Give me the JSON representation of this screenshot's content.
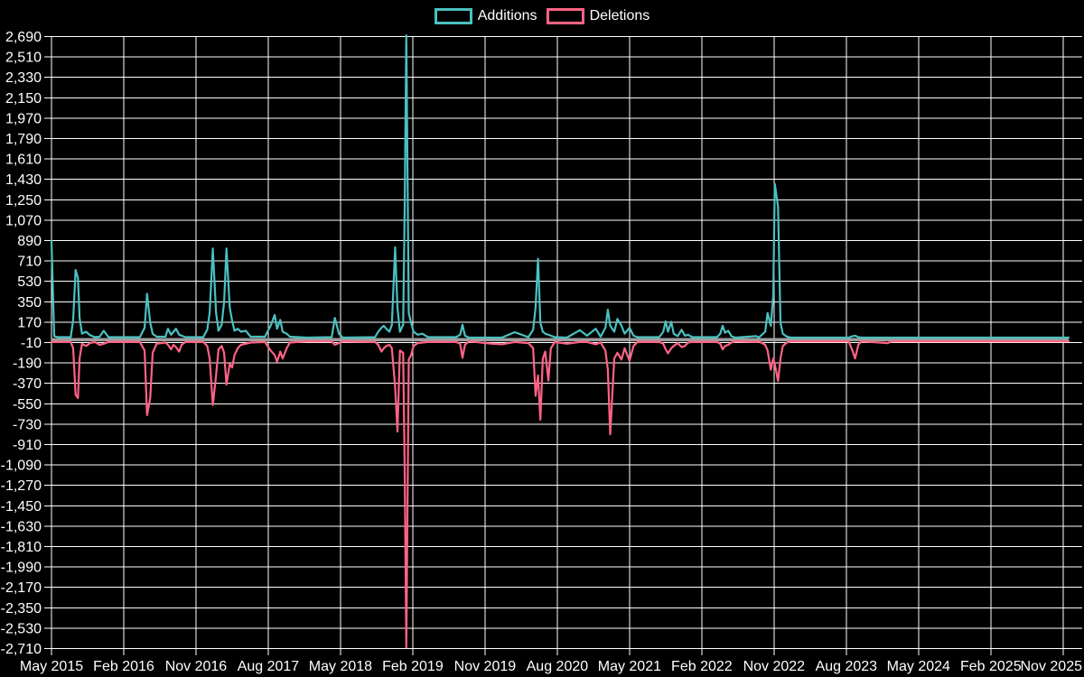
{
  "page": {
    "background": "#000000"
  },
  "chart_data": {
    "type": "line",
    "title": "",
    "legend_position": "top",
    "grid": true,
    "grid_color": "#FFFFFF",
    "text_color": "#FFFFFF",
    "zero_line_color": "#9E9E9E",
    "background": "#000000",
    "x_unit": "months since May 2015 (weekly commit activity)",
    "xlim": [
      0,
      126.7
    ],
    "ylim": [
      -2710,
      2690
    ],
    "y_tick_step": 180,
    "y_tick_labels": [
      "-2,710",
      "-2,530",
      "-2,350",
      "-2,170",
      "-1,990",
      "-1,810",
      "-1,630",
      "-1,450",
      "-1,270",
      "-1,090",
      "-910",
      "-730",
      "-550",
      "-370",
      "-190",
      "-10",
      "170",
      "350",
      "530",
      "710",
      "890",
      "1,070",
      "1,250",
      "1,430",
      "1,610",
      "1,790",
      "1,970",
      "2,150",
      "2,330",
      "2,510",
      "2,690"
    ],
    "x_tick_positions": [
      0,
      9,
      18,
      27,
      36,
      45,
      54,
      63,
      72,
      81,
      90,
      99,
      108,
      117,
      126
    ],
    "x_tick_labels": [
      "May 2015",
      "Feb 2016",
      "Nov 2016",
      "Aug 2017",
      "May 2018",
      "Feb 2019",
      "Nov 2019",
      "Aug 2020",
      "May 2021",
      "Feb 2022",
      "Nov 2022",
      "Aug 2023",
      "May 2024",
      "Feb 2025",
      "Nov 2025"
    ],
    "x": [
      0,
      0.34,
      0.8,
      2.4,
      2.7,
      3.0,
      3.3,
      3.5,
      3.8,
      4.3,
      4.8,
      5.4,
      6.0,
      6.5,
      7.1,
      11.0,
      11.6,
      11.9,
      12.3,
      12.6,
      13.1,
      14.2,
      14.5,
      14.9,
      15.2,
      15.5,
      15.9,
      16.2,
      16.7,
      18.9,
      19.4,
      19.7,
      20.1,
      20.5,
      20.8,
      21.2,
      21.5,
      21.8,
      22.2,
      22.5,
      22.8,
      23.2,
      23.6,
      24.2,
      24.8,
      26.6,
      26.9,
      27.3,
      27.8,
      28.1,
      28.5,
      28.8,
      29.3,
      29.7,
      31.8,
      34.9,
      35.3,
      35.8,
      36.3,
      40.3,
      40.7,
      41.1,
      41.4,
      41.7,
      42.1,
      42.4,
      42.8,
      43.1,
      43.4,
      43.8,
      44.0,
      44.2,
      44.5,
      44.8,
      45.1,
      45.6,
      46.2,
      46.9,
      50.4,
      50.9,
      51.2,
      51.5,
      52.0,
      54.9,
      56.1,
      57.7,
      59.4,
      60.0,
      60.3,
      60.6,
      60.9,
      61.2,
      61.5,
      61.9,
      62.2,
      62.7,
      64.2,
      65.8,
      66.7,
      67.8,
      68.4,
      69.0,
      69.3,
      69.6,
      70.1,
      70.5,
      71.0,
      71.4,
      72.0,
      72.5,
      73.0,
      75.7,
      76.2,
      76.5,
      76.8,
      77.2,
      77.5,
      78.0,
      78.5,
      78.9,
      79.3,
      79.8,
      82.9,
      83.3,
      83.6,
      83.9,
      84.3,
      84.7,
      85.2,
      87.8,
      88.1,
      88.9,
      89.2,
      89.6,
      89.9,
      90.1,
      90.5,
      90.8,
      91.1,
      91.6,
      92.1,
      99.3,
      99.8,
      100.1,
      100.5,
      100.9,
      104.2,
      104.6,
      126.7
    ],
    "series": [
      {
        "name": "Additions",
        "color": "#4BC0C0",
        "values": [
          890,
          15,
          5,
          5,
          180,
          630,
          560,
          200,
          40,
          60,
          25,
          5,
          10,
          70,
          5,
          5,
          100,
          420,
          150,
          40,
          10,
          10,
          90,
          30,
          60,
          90,
          30,
          20,
          5,
          5,
          80,
          250,
          820,
          250,
          70,
          130,
          350,
          820,
          300,
          170,
          70,
          90,
          60,
          70,
          10,
          10,
          60,
          120,
          230,
          90,
          180,
          60,
          40,
          10,
          0,
          5,
          200,
          40,
          0,
          5,
          60,
          100,
          120,
          90,
          60,
          130,
          830,
          300,
          60,
          130,
          1180,
          2700,
          250,
          150,
          60,
          30,
          40,
          5,
          5,
          30,
          130,
          20,
          0,
          0,
          0,
          55,
          5,
          80,
          300,
          730,
          150,
          60,
          40,
          30,
          20,
          5,
          0,
          75,
          20,
          90,
          10,
          100,
          280,
          120,
          60,
          190,
          120,
          40,
          100,
          20,
          5,
          5,
          60,
          165,
          60,
          160,
          40,
          15,
          80,
          20,
          30,
          5,
          5,
          40,
          120,
          50,
          70,
          15,
          0,
          15,
          0,
          60,
          250,
          120,
          400,
          1390,
          1190,
          150,
          40,
          10,
          0,
          0,
          15,
          20,
          5,
          0,
          0,
          0,
          0
        ]
      },
      {
        "name": "Deletions",
        "color": "#FF6384",
        "values": [
          -5,
          -5,
          -5,
          -5,
          -60,
          -470,
          -500,
          -150,
          -20,
          -40,
          -15,
          -5,
          -30,
          -20,
          -5,
          -5,
          -80,
          -650,
          -500,
          -100,
          -20,
          -10,
          -30,
          -70,
          -30,
          -50,
          -90,
          -30,
          -5,
          -5,
          -40,
          -150,
          -560,
          -300,
          -70,
          -40,
          -100,
          -380,
          -200,
          -230,
          -120,
          -60,
          -30,
          -20,
          -10,
          -5,
          -40,
          -80,
          -120,
          -180,
          -90,
          -150,
          -60,
          -10,
          0,
          0,
          -30,
          -15,
          0,
          -5,
          -30,
          -90,
          -60,
          -40,
          -30,
          -60,
          -400,
          -795,
          -80,
          -100,
          -1140,
          -2700,
          -160,
          -120,
          -40,
          -15,
          -10,
          -5,
          -5,
          -20,
          -145,
          -30,
          0,
          -20,
          -25,
          -5,
          -15,
          -60,
          -480,
          -300,
          -690,
          -150,
          -90,
          -345,
          -60,
          -5,
          -20,
          -5,
          -5,
          -25,
          -10,
          -80,
          -250,
          -820,
          -150,
          -100,
          -160,
          -60,
          -170,
          -40,
          -5,
          -5,
          -20,
          -70,
          -105,
          -60,
          -40,
          -15,
          -50,
          -40,
          -10,
          -5,
          -5,
          -20,
          -70,
          -40,
          -30,
          -10,
          0,
          -5,
          0,
          -30,
          -80,
          -250,
          -150,
          -200,
          -350,
          -150,
          -40,
          -10,
          0,
          0,
          -85,
          -150,
          -30,
          0,
          -15,
          0,
          0
        ]
      }
    ]
  }
}
